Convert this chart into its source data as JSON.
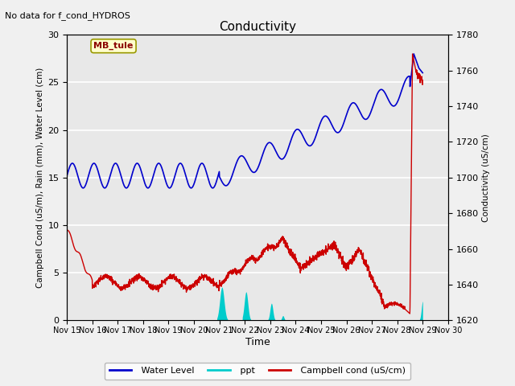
{
  "title": "Conductivity",
  "annotation": "No data for f_cond_HYDROS",
  "xlabel": "Time",
  "ylabel_left": "Campbell Cond (uS/m), Rain (mm), Water Level (cm)",
  "ylabel_right": "Conductivity (uS/cm)",
  "ylim_left": [
    0,
    30
  ],
  "ylim_right": [
    1620,
    1780
  ],
  "legend_box_label": "MB_tule",
  "legend_box_color": "#ffffcc",
  "legend_box_border": "#888800",
  "background_color": "#e8e8e8",
  "grid_color": "#ffffff",
  "x_start": 15,
  "x_end": 30,
  "x_ticks": [
    15,
    16,
    17,
    18,
    19,
    20,
    21,
    22,
    23,
    24,
    25,
    26,
    27,
    28,
    29,
    30
  ],
  "x_tick_labels": [
    "Nov 15",
    "Nov 16",
    "Nov 17",
    "Nov 18",
    "Nov 19",
    "Nov 20",
    "Nov 21",
    "Nov 22",
    "Nov 23",
    "Nov 24",
    "Nov 25",
    "Nov 26",
    "Nov 27",
    "Nov 28",
    "Nov 29",
    "Nov 30"
  ],
  "water_level_color": "#0000cc",
  "ppt_color": "#00cccc",
  "campbell_color": "#cc0000",
  "line_width": 1.0,
  "fig_bg": "#f0f0f0"
}
